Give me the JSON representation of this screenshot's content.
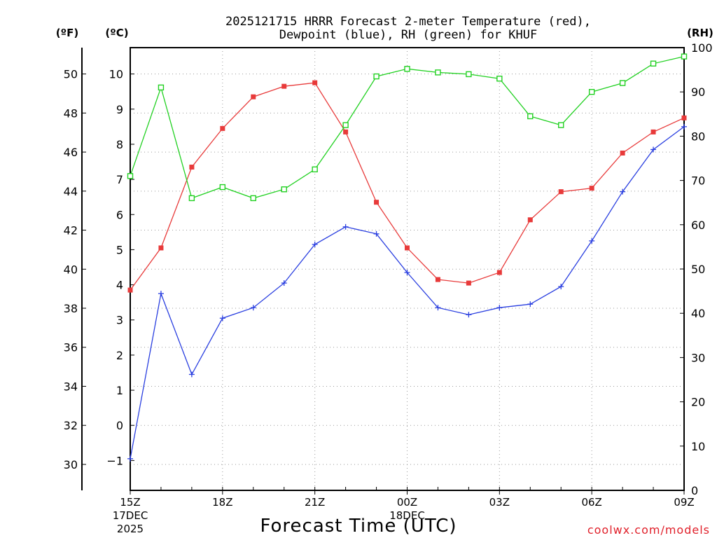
{
  "chart_data": {
    "type": "line",
    "title_line1": "2025121715 HRRR Forecast 2-meter Temperature (red),",
    "title_line2": "Dewpoint (blue), RH (green) for KHUF",
    "xlabel": "Forecast Time (UTC)",
    "credit": "coolwx.com/models",
    "unit_f": "(ºF)",
    "unit_c": "(ºC)",
    "unit_rh": "(RH)",
    "x_hours": [
      15,
      16,
      17,
      18,
      19,
      20,
      21,
      22,
      23,
      24,
      25,
      26,
      27,
      28,
      29,
      30,
      31,
      32,
      33
    ],
    "x_ticks": [
      {
        "hour": 15,
        "label": "15Z",
        "sub1": "17DEC",
        "sub2": "2025"
      },
      {
        "hour": 18,
        "label": "18Z",
        "sub1": "",
        "sub2": ""
      },
      {
        "hour": 21,
        "label": "21Z",
        "sub1": "",
        "sub2": ""
      },
      {
        "hour": 24,
        "label": "00Z",
        "sub1": "18DEC",
        "sub2": ""
      },
      {
        "hour": 27,
        "label": "03Z",
        "sub1": "",
        "sub2": ""
      },
      {
        "hour": 30,
        "label": "06Z",
        "sub1": "",
        "sub2": ""
      },
      {
        "hour": 33,
        "label": "09Z",
        "sub1": "",
        "sub2": ""
      }
    ],
    "c_range": [
      -1.85,
      10.75
    ],
    "c_ticks": [
      "-1",
      "0",
      "1",
      "2",
      "3",
      "4",
      "5",
      "6",
      "7",
      "8",
      "9",
      "10"
    ],
    "f_ticks": [
      "30",
      "32",
      "34",
      "36",
      "38",
      "40",
      "42",
      "44",
      "46",
      "48",
      "50"
    ],
    "rh_range": [
      0,
      100
    ],
    "rh_ticks": [
      "0",
      "10",
      "20",
      "30",
      "40",
      "50",
      "60",
      "70",
      "80",
      "90",
      "100"
    ],
    "series": [
      {
        "axis": "c",
        "color": "#e83a3a",
        "marker": "filled-square",
        "values": [
          3.85,
          5.05,
          7.35,
          8.45,
          9.35,
          9.65,
          9.75,
          8.35,
          6.35,
          5.05,
          4.15,
          4.05,
          4.35,
          5.85,
          6.65,
          6.75,
          7.75,
          8.35,
          8.75
        ]
      },
      {
        "axis": "c",
        "color": "#2a3fe0",
        "marker": "plus",
        "values": [
          -0.95,
          3.75,
          1.45,
          3.05,
          3.35,
          4.05,
          5.15,
          5.65,
          5.45,
          4.35,
          3.35,
          3.15,
          3.35,
          3.45,
          3.95,
          5.25,
          6.65,
          7.85,
          8.5
        ]
      },
      {
        "axis": "rh",
        "color": "#22d122",
        "marker": "open-square",
        "values": [
          71,
          91,
          66,
          68.5,
          66,
          68,
          72.5,
          82.5,
          93.5,
          95.2,
          94.4,
          94,
          93,
          84.5,
          82.5,
          90,
          92,
          96.4,
          98
        ]
      }
    ]
  }
}
